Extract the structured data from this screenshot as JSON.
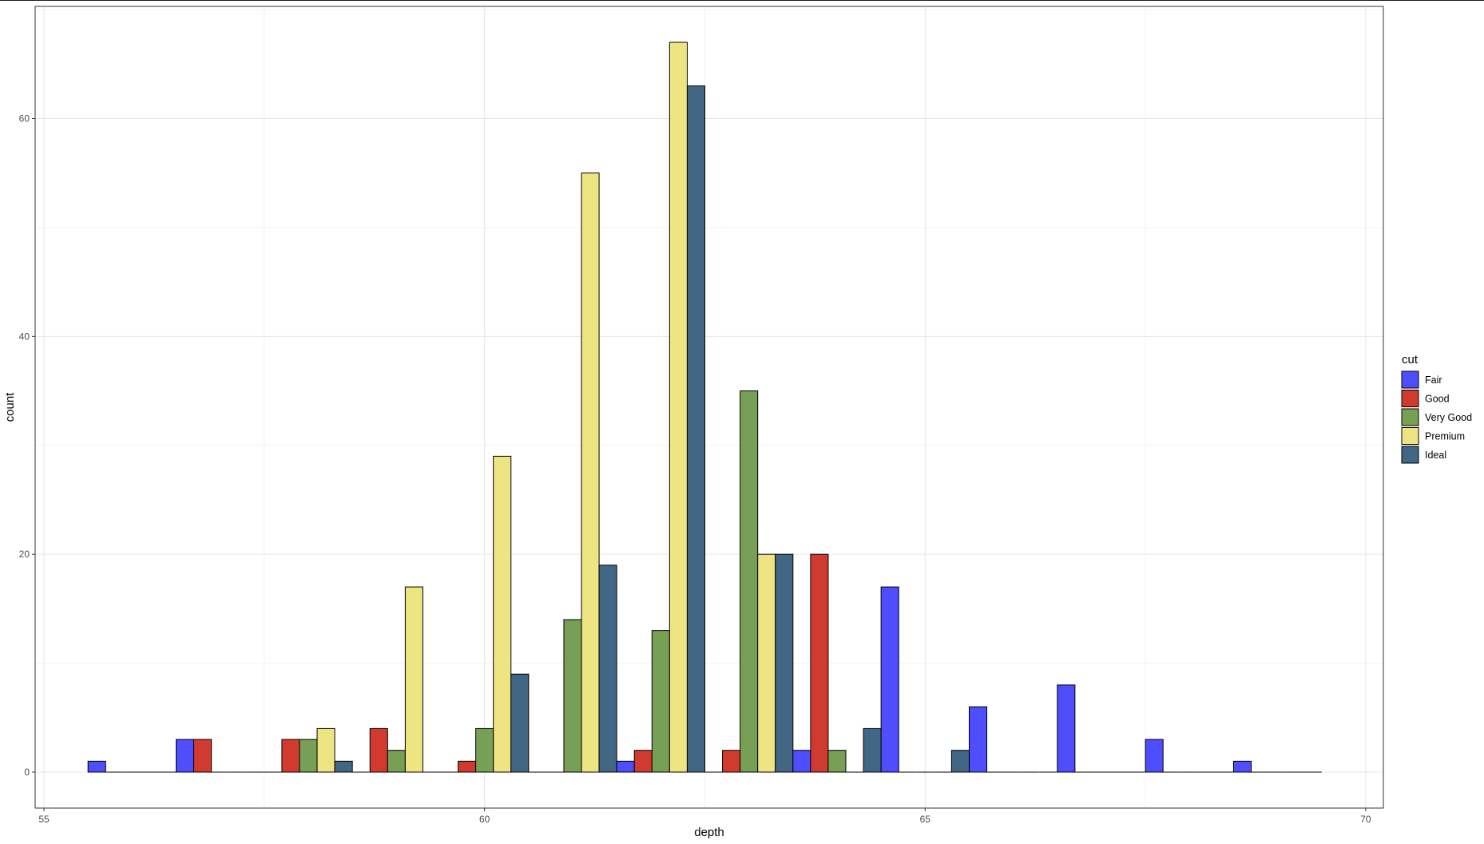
{
  "chart_data": {
    "type": "bar",
    "title": "",
    "xlabel": "depth",
    "ylabel": "count",
    "xlim": [
      54.9,
      70.2
    ],
    "ylim": [
      -3.3,
      70.3
    ],
    "x_ticks": [
      55,
      60,
      65,
      70
    ],
    "y_ticks": [
      0,
      20,
      40,
      60
    ],
    "grid": true,
    "legend": {
      "title": "cut",
      "position": "right"
    },
    "bin_width": 1,
    "x": [
      56,
      57,
      58,
      59,
      60,
      61,
      62,
      63,
      64,
      65,
      66,
      67,
      68,
      69
    ],
    "series": [
      {
        "name": "Fair",
        "color": "#4E4EFF",
        "values": [
          1,
          3,
          0,
          0,
          0,
          0,
          1,
          0,
          2,
          17,
          6,
          8,
          3,
          1
        ]
      },
      {
        "name": "Good",
        "color": "#D13B2F",
        "values": [
          0,
          3,
          3,
          4,
          1,
          0,
          2,
          2,
          20,
          0,
          0,
          0,
          0,
          0
        ]
      },
      {
        "name": "Very Good",
        "color": "#779F55",
        "values": [
          0,
          0,
          3,
          2,
          4,
          14,
          13,
          35,
          2,
          0,
          0,
          0,
          0,
          0
        ]
      },
      {
        "name": "Premium",
        "color": "#EFE482",
        "values": [
          0,
          0,
          4,
          17,
          29,
          55,
          67,
          20,
          0,
          0,
          0,
          0,
          0,
          0
        ]
      },
      {
        "name": "Ideal",
        "color": "#426785",
        "values": [
          0,
          0,
          1,
          0,
          9,
          19,
          63,
          20,
          4,
          2,
          0,
          0,
          0,
          0
        ]
      }
    ]
  }
}
